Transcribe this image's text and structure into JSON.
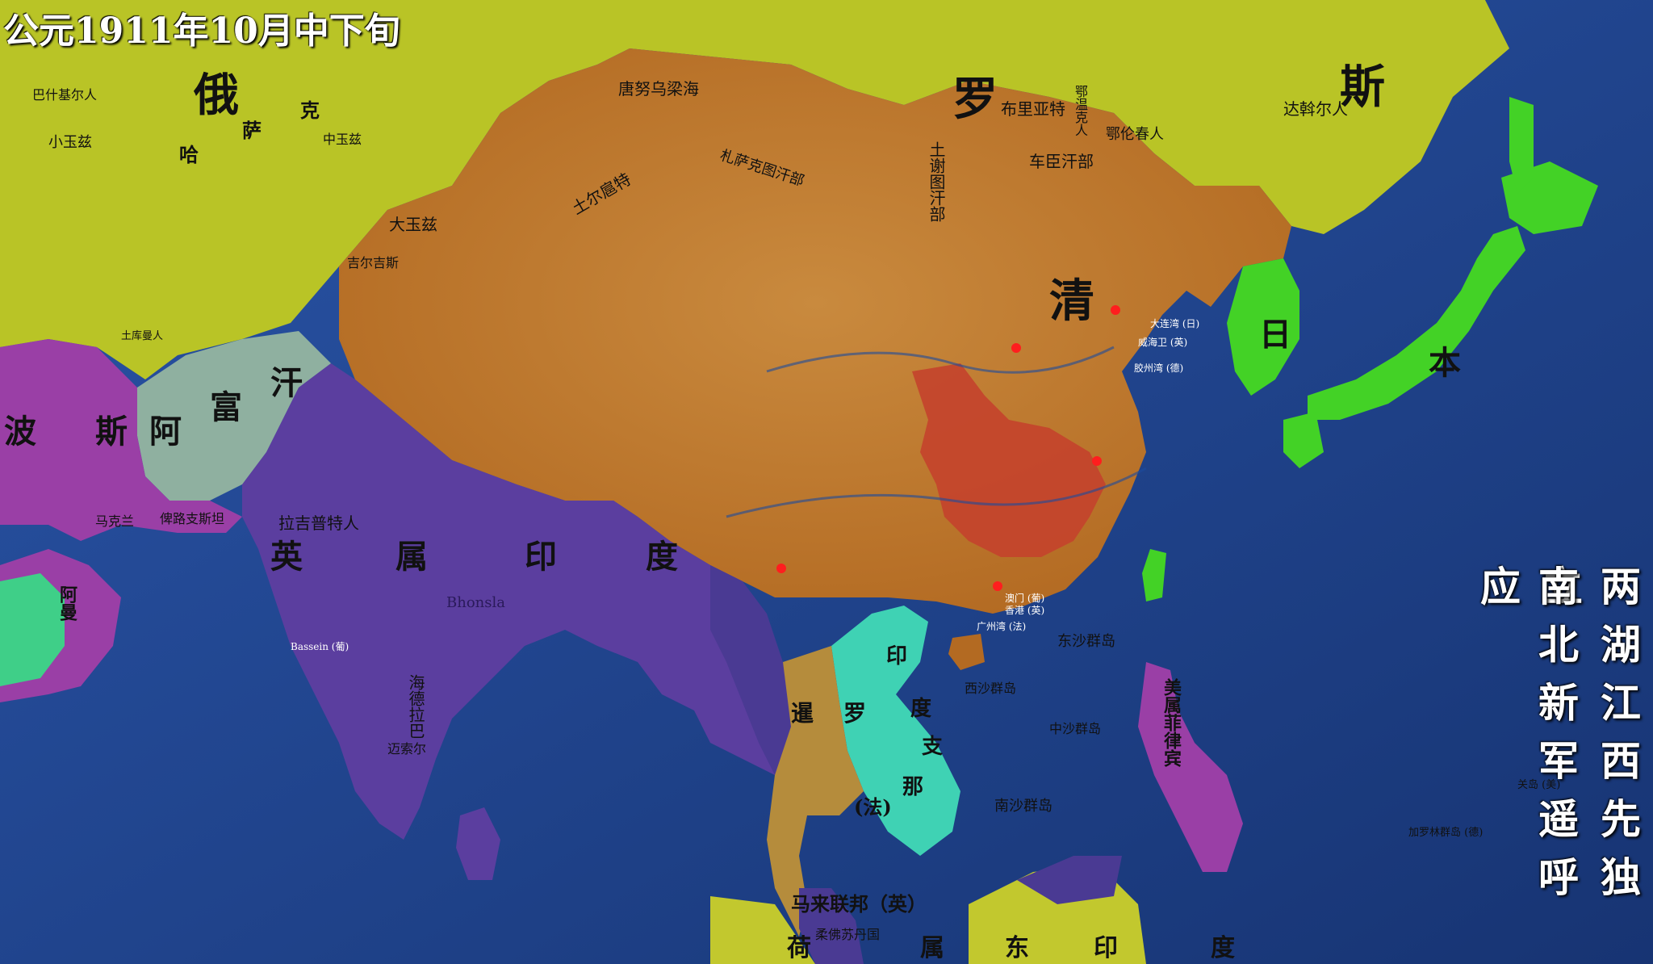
{
  "title": "公元1911年10月中下旬",
  "side_text": [
    "两湖江西先独立",
    "南北新军遥呼应"
  ],
  "colors": {
    "ocean": "#1d3f86",
    "russia": "#b8c224",
    "qing": "#c07a2e",
    "revolt": "#c8442c",
    "japan": "#43d226",
    "british_india": "#5a3d9e",
    "french_indochina": "#3fd2b2",
    "siam": "#b08a3a",
    "persia": "#9a3fa6",
    "afghanistan": "#8fb0a0"
  },
  "major_labels": {
    "russia_1": "俄",
    "russia_2": "罗",
    "russia_3": "斯",
    "qing": "清",
    "japan_1": "日",
    "japan_2": "本",
    "british_india": [
      "英",
      "属",
      "印",
      "度"
    ],
    "persia": [
      "波",
      "斯"
    ],
    "afghanistan": [
      "阿",
      "富",
      "汗"
    ],
    "siam": [
      "暹",
      "罗"
    ],
    "indochina": [
      "印",
      "度",
      "支",
      "那",
      "(法)"
    ],
    "malay": "马来联邦（英）",
    "dutch_east_indies": [
      "荷",
      "属",
      "东",
      "印",
      "度"
    ],
    "kazakh": [
      "哈",
      "萨",
      "克"
    ],
    "philippines": [
      "美",
      "属",
      "菲",
      "律",
      "宾"
    ]
  },
  "minor_labels": [
    "唐努乌梁海",
    "札萨克图汗部",
    "土尔扈特",
    "土谢图汗部",
    "车臣汗部",
    "布里亚特",
    "达斡尔人",
    "鄂伦春人",
    "鄂温克人",
    "大玉兹",
    "中玉兹",
    "小玉兹",
    "巴什基尔人",
    "拉吉普特人",
    "俾路支斯坦",
    "马克兰",
    "海德拉巴",
    "迈索尔",
    "东沙群岛",
    "西沙群岛",
    "中沙群岛",
    "南沙群岛",
    "柔佛苏丹国",
    "Bhonsla",
    "Bassein (葡)",
    "阿曼",
    "关岛 (美)",
    "加罗林群岛 (德)",
    "大连湾 (日)",
    "威海卫 (英)",
    "胶州湾 (德)",
    "广州湾 (法)",
    "香港 (英)",
    "澳门 (葡)",
    "土库曼人",
    "吉尔吉斯"
  ]
}
